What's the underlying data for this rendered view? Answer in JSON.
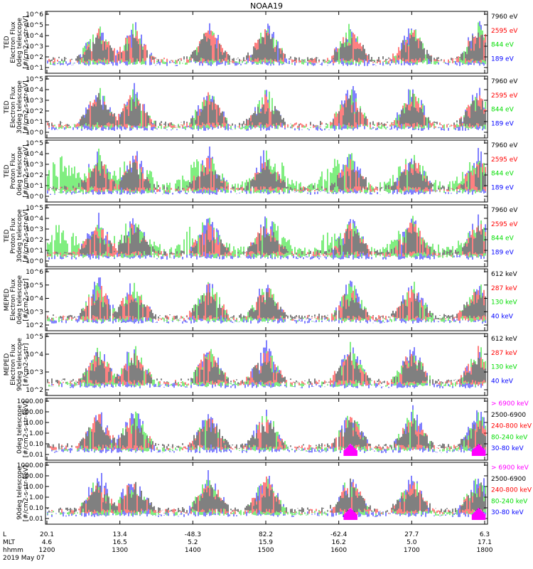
{
  "chart_data": {
    "type": "line",
    "title": "NOAA19",
    "colors": {
      "black": "#000000",
      "blue": "#0000ff",
      "red": "#ff0000",
      "green": "#00dd00",
      "magenta": "#ff00ff"
    },
    "panels": [
      {
        "ylabel": [
          "TED",
          "Electron Flux",
          "0deg telescope",
          "[#/cm2-s-str-eV]"
        ],
        "yticks": [
          "10^1",
          "10^2",
          "10^3",
          "10^4",
          "10^5",
          "10^6"
        ],
        "legend": [
          {
            "text": "7960 eV",
            "color": "black"
          },
          {
            "text": "2595 eV",
            "color": "red"
          },
          {
            "text": "844 eV",
            "color": "green"
          },
          {
            "text": "189 eV",
            "color": "blue"
          }
        ]
      },
      {
        "ylabel": [
          "TED",
          "Electron Flux",
          "30deg telescope",
          "[#/cm2-s-str-eV]"
        ],
        "yticks": [
          "10^0",
          "10^1",
          "10^2",
          "10^3",
          "10^4",
          "10^5"
        ],
        "legend": [
          {
            "text": "7960 eV",
            "color": "black"
          },
          {
            "text": "2595 eV",
            "color": "red"
          },
          {
            "text": "844 eV",
            "color": "green"
          },
          {
            "text": "189 eV",
            "color": "blue"
          }
        ]
      },
      {
        "ylabel": [
          "TED",
          "Proton Flux",
          "0deg telescope",
          "[#/cm2-s-str-eV]"
        ],
        "yticks": [
          "10^0",
          "10^1",
          "10^2",
          "10^3",
          "10^4",
          "10^5"
        ],
        "legend": [
          {
            "text": "7960 eV",
            "color": "black"
          },
          {
            "text": "2595 eV",
            "color": "red"
          },
          {
            "text": "844 eV",
            "color": "green"
          },
          {
            "text": "189 eV",
            "color": "blue"
          }
        ]
      },
      {
        "ylabel": [
          "TED",
          "Proton Flux",
          "30deg telescope",
          "[#/cm2-s-str-eV]"
        ],
        "yticks": [
          "10^0",
          "10^1",
          "10^2",
          "10^3",
          "10^4",
          "10^5"
        ],
        "legend": [
          {
            "text": "7960 eV",
            "color": "black"
          },
          {
            "text": "2595 eV",
            "color": "red"
          },
          {
            "text": "844 eV",
            "color": "green"
          },
          {
            "text": "189 eV",
            "color": "blue"
          }
        ]
      },
      {
        "ylabel": [
          "MEPED",
          "Electron Flux",
          "0deg telescope",
          "[#/cm2-s-str]"
        ],
        "yticks": [
          "10^2",
          "10^3",
          "10^4",
          "10^5",
          "10^6"
        ],
        "legend": [
          {
            "text": "612 keV",
            "color": "black"
          },
          {
            "text": "287 keV",
            "color": "red"
          },
          {
            "text": "130 keV",
            "color": "green"
          },
          {
            "text": "40 keV",
            "color": "blue"
          }
        ]
      },
      {
        "ylabel": [
          "MEPED",
          "Electron Flux",
          "90deg telescope",
          "[#/cm2-s-str]"
        ],
        "yticks": [
          "10^2",
          "10^3",
          "10^4",
          "10^5"
        ],
        "legend": [
          {
            "text": "612 keV",
            "color": "black"
          },
          {
            "text": "287 keV",
            "color": "red"
          },
          {
            "text": "130 keV",
            "color": "green"
          },
          {
            "text": "40 keV",
            "color": "blue"
          }
        ]
      },
      {
        "ylabel": [
          "0deg telescope",
          "[#/cm2-s-str-keV]"
        ],
        "yticks": [
          "0.01",
          "0.10",
          "1.00",
          "10.00",
          "100.00",
          "1000.00"
        ],
        "legend": [
          {
            "text": "> 6900 keV",
            "color": "magenta"
          },
          {
            "text": "2500-6900",
            "color": "black"
          },
          {
            "text": "240-800 keV",
            "color": "red"
          },
          {
            "text": "80-240 keV",
            "color": "green"
          },
          {
            "text": "30-80 keV",
            "color": "blue"
          }
        ]
      },
      {
        "ylabel": [
          "90deg telescope",
          "[#/cm2-s-str-keV]"
        ],
        "yticks": [
          "0.01",
          "0.10",
          "1.00",
          "10.00",
          "100.00",
          "1000.00"
        ],
        "legend": [
          {
            "text": "> 6900 keV",
            "color": "magenta"
          },
          {
            "text": "2500-6900",
            "color": "black"
          },
          {
            "text": "240-800 keV",
            "color": "red"
          },
          {
            "text": "80-240 keV",
            "color": "green"
          },
          {
            "text": "30-80 keV",
            "color": "blue"
          }
        ]
      }
    ],
    "xaxis": {
      "rows": [
        {
          "label": "L",
          "values": [
            "20.1",
            "13.4",
            "-48.3",
            "82.2",
            "-62.4",
            "27.7",
            "6.3"
          ]
        },
        {
          "label": "MLT",
          "values": [
            "4.6",
            "16.5",
            "5.2",
            "15.9",
            "16.2",
            "5.0",
            "17.1"
          ]
        },
        {
          "label": "hhmm",
          "values": [
            "1200",
            "1300",
            "1400",
            "1500",
            "1600",
            "1700",
            "1800"
          ]
        }
      ],
      "date": "2019 May 07"
    }
  }
}
